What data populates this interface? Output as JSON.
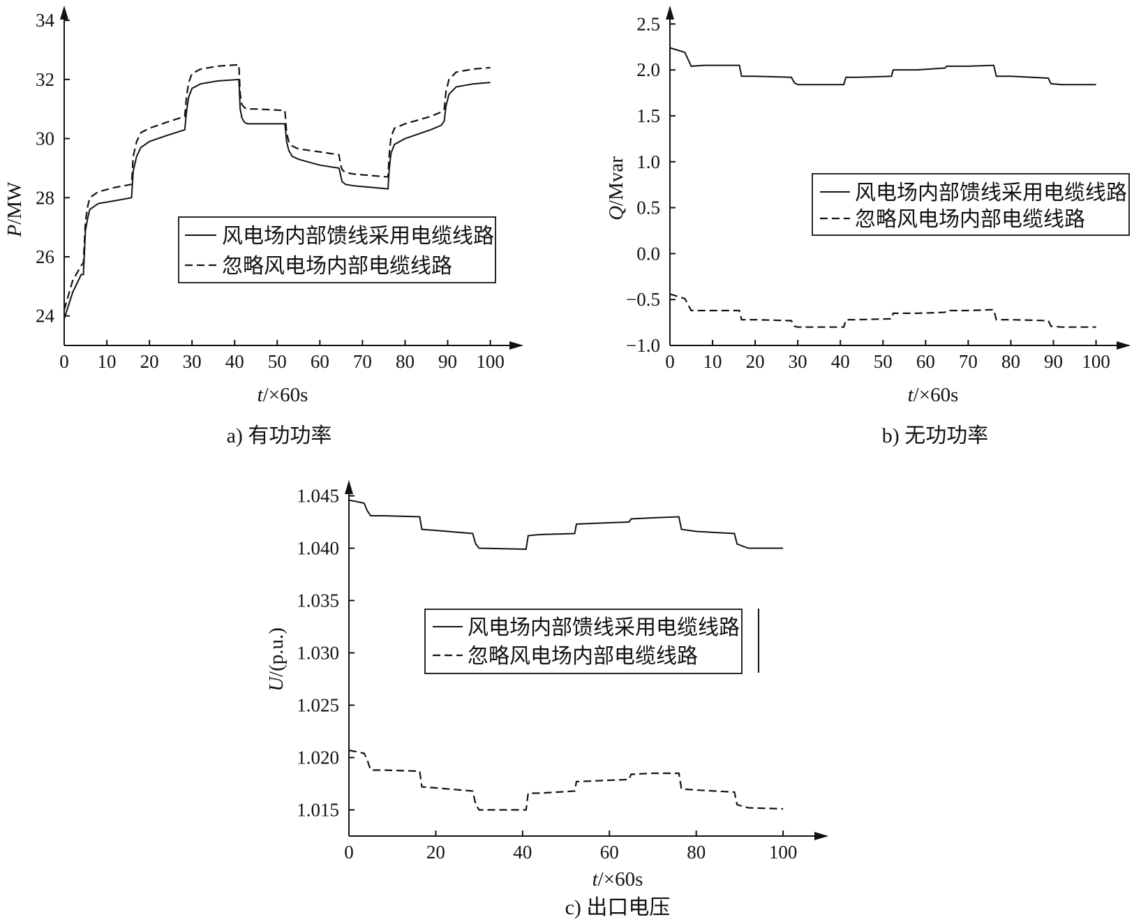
{
  "chart_data": [
    {
      "id": "a",
      "type": "line",
      "caption": "a) 有功功率",
      "ylabel": "P/MW",
      "ylabel_var": "P",
      "ylabel_unit": "/MW",
      "xlabel": "t/×60s",
      "xlabel_var": "t",
      "xlabel_unit": "/×60s",
      "xlim": [
        0,
        104
      ],
      "ylim": [
        23,
        34.5
      ],
      "xticks": [
        0,
        10,
        20,
        30,
        40,
        50,
        60,
        70,
        80,
        90,
        100
      ],
      "yticks": [
        24,
        26,
        28,
        30,
        32,
        34
      ],
      "yticks_labels": [
        "24",
        "26",
        "28",
        "30",
        "32",
        "34"
      ],
      "legend": {
        "position": "center-right",
        "entries": [
          "风电场内部馈线采用电缆线路",
          "忽略风电场内部电缆线路"
        ]
      },
      "series": [
        {
          "name": "风电场内部馈线采用电缆线路",
          "style": "solid",
          "x": [
            0,
            2,
            4,
            4.5,
            5,
            5.5,
            6,
            8,
            12,
            15.8,
            16.2,
            17,
            18,
            20,
            24,
            28.3,
            28.7,
            29.2,
            30,
            32,
            36,
            41,
            41.3,
            41.7,
            42.3,
            43,
            45,
            51.8,
            52.2,
            52.7,
            53.5,
            55,
            60,
            64.5,
            64.8,
            65.2,
            66,
            68,
            72,
            76,
            76.3,
            76.7,
            77.5,
            80,
            86,
            88.5,
            89.2,
            89.6,
            90.3,
            92,
            96,
            100
          ],
          "y": [
            23.9,
            24.8,
            25.4,
            25.4,
            26.9,
            27.3,
            27.6,
            27.8,
            27.9,
            28.0,
            28.9,
            29.4,
            29.7,
            29.9,
            30.1,
            30.3,
            30.9,
            31.4,
            31.7,
            31.85,
            31.95,
            32.0,
            31.0,
            30.7,
            30.55,
            30.5,
            30.5,
            30.5,
            29.9,
            29.6,
            29.4,
            29.3,
            29.1,
            29.0,
            28.8,
            28.55,
            28.45,
            28.4,
            28.35,
            28.3,
            29.0,
            29.5,
            29.8,
            30.0,
            30.3,
            30.45,
            30.6,
            31.1,
            31.5,
            31.75,
            31.85,
            31.9
          ]
        },
        {
          "name": "忽略风电场内部电缆线路",
          "style": "dashed",
          "x": [
            0,
            2,
            4,
            4.5,
            5,
            5.5,
            6,
            8,
            12,
            15.8,
            16.2,
            17,
            18,
            20,
            24,
            28.3,
            28.7,
            29.2,
            30,
            32,
            36,
            41,
            41.3,
            41.7,
            42.3,
            43,
            45,
            51.8,
            52.2,
            52.7,
            53.5,
            55,
            60,
            64.5,
            64.8,
            65.2,
            66,
            68,
            72,
            76,
            76.3,
            76.7,
            77.5,
            80,
            86,
            88.5,
            89.2,
            89.6,
            90.3,
            92,
            96,
            100
          ],
          "y": [
            24.2,
            25.2,
            25.7,
            25.8,
            27.2,
            27.7,
            28.0,
            28.2,
            28.35,
            28.45,
            29.4,
            29.9,
            30.2,
            30.35,
            30.55,
            30.75,
            31.4,
            31.9,
            32.2,
            32.35,
            32.45,
            32.5,
            31.5,
            31.15,
            31.05,
            31.0,
            31.0,
            30.95,
            30.2,
            29.9,
            29.75,
            29.65,
            29.55,
            29.45,
            29.15,
            28.95,
            28.85,
            28.8,
            28.75,
            28.7,
            29.5,
            30.05,
            30.35,
            30.5,
            30.75,
            30.9,
            31.0,
            31.6,
            32.0,
            32.25,
            32.35,
            32.4
          ]
        }
      ]
    },
    {
      "id": "b",
      "type": "line",
      "caption": "b) 无功功率",
      "ylabel": "Q/Mvar",
      "ylabel_var": "Q",
      "ylabel_unit": "/Mvar",
      "xlabel": "t/×60s",
      "xlabel_var": "t",
      "xlabel_unit": "/×60s",
      "xlim": [
        0,
        104
      ],
      "ylim": [
        -1.0,
        2.7
      ],
      "xticks": [
        0,
        10,
        20,
        30,
        40,
        50,
        60,
        70,
        80,
        90,
        100
      ],
      "yticks": [
        -1.0,
        -0.5,
        0.0,
        0.5,
        1.0,
        1.5,
        2.0,
        2.5
      ],
      "yticks_labels": [
        "−1.0",
        "−0.5",
        "0.0",
        "0.5",
        "1.0",
        "1.5",
        "2.0",
        "2.5"
      ],
      "legend": {
        "position": "right",
        "entries": [
          "风电场内部馈线采用电缆线路",
          "忽略风电场内部电缆线路"
        ]
      },
      "series": [
        {
          "name": "风电场内部馈线采用电缆线路",
          "style": "solid",
          "x": [
            0,
            3.5,
            4.2,
            5,
            8,
            16.3,
            16.8,
            20,
            28.5,
            29.2,
            30,
            40.8,
            41.3,
            44,
            52,
            52.4,
            58,
            64.5,
            65,
            70,
            76,
            76.6,
            80,
            88.8,
            89.4,
            92,
            100
          ],
          "y": [
            2.24,
            2.19,
            2.12,
            2.04,
            2.05,
            2.05,
            1.93,
            1.93,
            1.92,
            1.86,
            1.84,
            1.84,
            1.92,
            1.92,
            1.93,
            2.0,
            2.0,
            2.02,
            2.04,
            2.04,
            2.05,
            1.93,
            1.93,
            1.91,
            1.85,
            1.84,
            1.84
          ]
        },
        {
          "name": "忽略风电场内部电缆线路",
          "style": "dashed",
          "x": [
            0,
            3.5,
            4.2,
            5,
            8,
            16.3,
            16.8,
            20,
            28.5,
            29.2,
            30,
            40.8,
            41.3,
            44,
            52,
            52.4,
            58,
            64.5,
            65,
            70,
            76,
            76.6,
            80,
            88.8,
            89.4,
            92,
            100
          ],
          "y": [
            -0.44,
            -0.49,
            -0.55,
            -0.62,
            -0.62,
            -0.62,
            -0.72,
            -0.72,
            -0.73,
            -0.79,
            -0.8,
            -0.8,
            -0.72,
            -0.72,
            -0.71,
            -0.65,
            -0.65,
            -0.64,
            -0.62,
            -0.62,
            -0.61,
            -0.72,
            -0.72,
            -0.73,
            -0.79,
            -0.8,
            -0.8
          ]
        }
      ]
    },
    {
      "id": "c",
      "type": "line",
      "caption": "c) 出口电压",
      "ylabel": "U/(p.u.)",
      "ylabel_var": "U",
      "ylabel_unit": "/(p.u.)",
      "xlabel": "t/×60s",
      "xlabel_var": "t",
      "xlabel_unit": "/×60s",
      "xlim": [
        0,
        104
      ],
      "ylim": [
        1.0125,
        1.0465
      ],
      "xticks": [
        0,
        20,
        40,
        60,
        80,
        100
      ],
      "yticks": [
        1.015,
        1.02,
        1.025,
        1.03,
        1.035,
        1.04,
        1.045
      ],
      "yticks_labels": [
        "1.015",
        "1.020",
        "1.025",
        "1.030",
        "1.035",
        "1.040",
        "1.045"
      ],
      "legend": {
        "position": "center",
        "entries": [
          "风电场内部馈线采用电缆线路",
          "忽略风电场内部电缆线路"
        ]
      },
      "series": [
        {
          "name": "风电场内部馈线采用电缆线路",
          "style": "solid",
          "x": [
            0,
            3.5,
            4.2,
            5,
            8,
            16.3,
            16.8,
            20,
            28.5,
            29.2,
            30,
            40.8,
            41.3,
            44,
            52,
            52.4,
            58,
            64.5,
            65,
            70,
            76,
            76.6,
            80,
            88.8,
            89.4,
            92,
            100
          ],
          "y": [
            1.0446,
            1.0443,
            1.0436,
            1.0431,
            1.0431,
            1.043,
            1.0418,
            1.0417,
            1.0414,
            1.0404,
            1.04,
            1.0399,
            1.0412,
            1.0413,
            1.0414,
            1.0423,
            1.0424,
            1.0425,
            1.0428,
            1.0429,
            1.043,
            1.0418,
            1.0416,
            1.0414,
            1.0404,
            1.04,
            1.04
          ]
        },
        {
          "name": "忽略风电场内部电缆线路",
          "style": "dashed",
          "x": [
            0,
            3.5,
            4.2,
            5,
            8,
            16.3,
            16.8,
            20,
            28.5,
            29.2,
            30,
            40.8,
            41.3,
            44,
            52,
            52.4,
            58,
            64.5,
            65,
            70,
            76,
            76.6,
            80,
            88.8,
            89.4,
            92,
            100
          ],
          "y": [
            1.0207,
            1.0204,
            1.0198,
            1.0188,
            1.0188,
            1.0187,
            1.0172,
            1.0171,
            1.0168,
            1.0155,
            1.015,
            1.015,
            1.0166,
            1.0166,
            1.0168,
            1.0177,
            1.0178,
            1.0179,
            1.0184,
            1.0185,
            1.0185,
            1.017,
            1.0169,
            1.0167,
            1.0155,
            1.0152,
            1.0151
          ]
        }
      ]
    }
  ]
}
